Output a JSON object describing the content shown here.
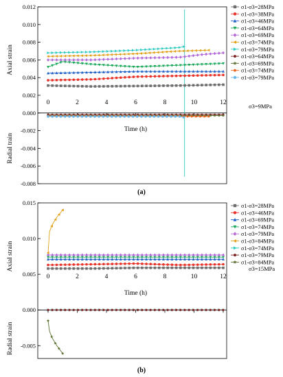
{
  "chart_data": [
    {
      "type": "line",
      "panel_label": "(a)",
      "xlabel": "Time (h)",
      "ylabel_top": "Axial strain",
      "ylabel_bottom": "Radial train",
      "xlim": [
        0,
        12
      ],
      "ylim": [
        -0.008,
        0.012
      ],
      "x_ticks": [
        "0",
        "2",
        "4",
        "6",
        "8",
        "10",
        "12"
      ],
      "y_ticks": [
        "-0.008",
        "-0.006",
        "-0.004",
        "-0.002",
        "0.000",
        "0.002",
        "0.004",
        "0.006",
        "0.008",
        "0.010",
        "0.012"
      ],
      "confining_label": "σ3=9MPa",
      "legend_position": "right",
      "series": [
        {
          "name": "σ1-σ3=28MPa",
          "kind": "axial",
          "marker": "square",
          "color": "#6d6d6d",
          "x": [
            0,
            3,
            6,
            9,
            12
          ],
          "y": [
            0.0031,
            0.003,
            0.00305,
            0.0031,
            0.0032
          ]
        },
        {
          "name": "σ1-σ3=38MPa",
          "kind": "axial",
          "marker": "circle",
          "color": "#e8332a",
          "x": [
            0,
            3,
            6,
            9,
            12
          ],
          "y": [
            0.0037,
            0.0038,
            0.0041,
            0.0042,
            0.0043
          ]
        },
        {
          "name": "σ1-σ3=46MPa",
          "kind": "axial",
          "marker": "triangle-up",
          "color": "#1f5fc8",
          "x": [
            0,
            3,
            6,
            9,
            12
          ],
          "y": [
            0.0045,
            0.0046,
            0.0047,
            0.0047,
            0.0047
          ]
        },
        {
          "name": "σ1-σ3=64MPa",
          "kind": "axial",
          "marker": "triangle-down",
          "color": "#1aa85a",
          "x": [
            0,
            1,
            3,
            6,
            9,
            12
          ],
          "y": [
            0.0052,
            0.0058,
            0.0055,
            0.0052,
            0.0054,
            0.0056
          ]
        },
        {
          "name": "σ1-σ3=69MPa",
          "kind": "axial",
          "marker": "diamond",
          "color": "#b36ad8",
          "x": [
            0,
            3,
            6,
            9,
            10.5,
            12
          ],
          "y": [
            0.006,
            0.006,
            0.0062,
            0.0063,
            0.0066,
            0.0068
          ]
        },
        {
          "name": "σ1-σ3=74MPa",
          "kind": "axial",
          "marker": "triangle-left",
          "color": "#e0a01a",
          "x": [
            0,
            3,
            6,
            9,
            11
          ],
          "y": [
            0.0064,
            0.0065,
            0.0067,
            0.007,
            0.0071
          ]
        },
        {
          "name": "σ1-σ3=79MPa",
          "kind": "axial",
          "marker": "triangle-right",
          "color": "#2cc9c0",
          "x": [
            0,
            3,
            6,
            9,
            9.3
          ],
          "y": [
            0.0068,
            0.0069,
            0.0071,
            0.0074,
            0.0075
          ]
        },
        {
          "name": "σ1-σ3=64MPa",
          "kind": "radial",
          "marker": "hexagon",
          "color": "#7a1f1f",
          "x": [
            0,
            3,
            6,
            9,
            12
          ],
          "y": [
            -0.0002,
            -0.0002,
            -0.0002,
            -0.0002,
            -0.0002
          ]
        },
        {
          "name": "σ1-σ3=69MPa",
          "kind": "radial",
          "marker": "star",
          "color": "#5a6f2f",
          "x": [
            0,
            3,
            6,
            9,
            12
          ],
          "y": [
            -0.0003,
            -0.0003,
            -0.0003,
            -0.0003,
            -0.0003
          ]
        },
        {
          "name": "σ1-σ3=74MPa",
          "kind": "radial",
          "marker": "pentagon",
          "color": "#e8621a",
          "x": [
            0,
            3,
            6,
            9,
            9.3,
            11
          ],
          "y": [
            -0.00035,
            -0.00035,
            -0.00035,
            -0.00035,
            -0.0004,
            -0.0004
          ]
        },
        {
          "name": "σ1-σ3=79MPa",
          "kind": "radial",
          "marker": "circle",
          "color": "#6ab8e8",
          "x": [
            0,
            3,
            6,
            9,
            9.3
          ],
          "y": [
            -0.0004,
            -0.0004,
            -0.0004,
            -0.0004,
            -0.0005
          ]
        }
      ],
      "spike": {
        "color": "#2cc9c0",
        "x": 9.35,
        "y_from": 0.0117,
        "y_to": -0.0072
      }
    },
    {
      "type": "line",
      "panel_label": "(b)",
      "xlabel": "Time (h)",
      "ylabel_top": "Axial strain",
      "ylabel_bottom": "Radial strain",
      "xlim": [
        0,
        12
      ],
      "ylim": [
        -0.0068,
        0.015
      ],
      "x_ticks": [
        "0",
        "2",
        "4",
        "6",
        "8",
        "10",
        "12"
      ],
      "y_ticks": [
        "-0.005",
        "0.000",
        "0.005",
        "0.010",
        "0.015"
      ],
      "confining_label": "σ3=15MPa",
      "legend_position": "right",
      "series": [
        {
          "name": "σ1-σ3=28MPa",
          "kind": "axial",
          "marker": "square",
          "color": "#6d6d6d",
          "x": [
            0,
            3,
            6,
            9,
            12
          ],
          "y": [
            0.0058,
            0.0058,
            0.0059,
            0.0059,
            0.0059
          ]
        },
        {
          "name": "σ1-σ3=46MPa",
          "kind": "axial",
          "marker": "circle",
          "color": "#e8332a",
          "x": [
            0,
            3,
            6,
            9,
            12
          ],
          "y": [
            0.0063,
            0.0064,
            0.0065,
            0.0063,
            0.0064
          ]
        },
        {
          "name": "σ1-σ3=69MPa",
          "kind": "axial",
          "marker": "triangle-up",
          "color": "#1f5fc8",
          "x": [
            0,
            3,
            6,
            9,
            12
          ],
          "y": [
            0.0071,
            0.0071,
            0.0071,
            0.0071,
            0.0071
          ]
        },
        {
          "name": "σ1-σ3=74MPa",
          "kind": "axial",
          "marker": "triangle-down",
          "color": "#1aa85a",
          "x": [
            0,
            3,
            6,
            9,
            12
          ],
          "y": [
            0.0074,
            0.0074,
            0.0074,
            0.0074,
            0.0074
          ]
        },
        {
          "name": "σ1-σ3=79MPa",
          "kind": "axial",
          "marker": "diamond",
          "color": "#b36ad8",
          "x": [
            0,
            3,
            6,
            9,
            12
          ],
          "y": [
            0.0077,
            0.0077,
            0.0077,
            0.0077,
            0.0077
          ]
        },
        {
          "name": "σ1-σ3=84MPa",
          "kind": "axial",
          "marker": "triangle-left",
          "color": "#e0a01a",
          "x": [
            0,
            0.1,
            0.3,
            0.6,
            1.0
          ],
          "y": [
            0.008,
            0.011,
            0.012,
            0.013,
            0.014
          ]
        },
        {
          "name": "σ1-σ3=74MPa",
          "kind": "radial",
          "marker": "triangle-right",
          "color": "#2cc9c0",
          "x": [
            0,
            3,
            6,
            9,
            12
          ],
          "y": [
            0.0,
            0.0,
            0.0,
            0.0,
            0.0
          ]
        },
        {
          "name": "σ1-σ3=79MPa",
          "kind": "radial",
          "marker": "hexagon",
          "color": "#7a1f1f",
          "x": [
            0,
            3,
            6,
            9,
            12
          ],
          "y": [
            0.0,
            0.0,
            0.0,
            0.0,
            0.0
          ]
        },
        {
          "name": "σ1-σ3=84MPa",
          "kind": "radial",
          "marker": "star",
          "color": "#5a6f2f",
          "x": [
            0,
            0.1,
            0.3,
            0.6,
            1.0
          ],
          "y": [
            -0.0015,
            -0.003,
            -0.004,
            -0.005,
            -0.0061
          ]
        }
      ]
    }
  ]
}
